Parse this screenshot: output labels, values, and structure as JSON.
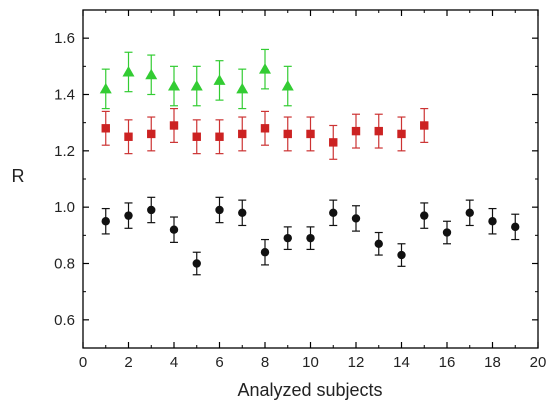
{
  "chart_data": {
    "type": "scatter",
    "title": "",
    "xlabel": "Analyzed subjects",
    "ylabel": "R",
    "xlim": [
      0,
      20
    ],
    "ylim": [
      0.5,
      1.7
    ],
    "xticks": [
      "0",
      "2",
      "4",
      "6",
      "8",
      "10",
      "12",
      "14",
      "16",
      "18",
      "20"
    ],
    "yticks": [
      "0.6",
      "0.8",
      "1.0",
      "1.2",
      "1.4",
      "1.6"
    ],
    "grid": false,
    "legend": "none",
    "series": [
      {
        "color": "#33cc33",
        "error_color": "#33cc33",
        "marker": "triangle",
        "x": [
          1,
          2,
          3,
          4,
          5,
          6,
          7,
          8,
          9
        ],
        "y": [
          1.42,
          1.48,
          1.47,
          1.43,
          1.43,
          1.45,
          1.42,
          1.49,
          1.43
        ],
        "error": [
          0.07,
          0.07,
          0.07,
          0.07,
          0.07,
          0.07,
          0.07,
          0.07,
          0.07
        ]
      },
      {
        "color": "#cc2222",
        "error_color": "#cc3333",
        "marker": "square",
        "x": [
          1,
          2,
          3,
          4,
          5,
          6,
          7,
          8,
          9,
          10,
          11,
          12,
          13,
          14,
          15
        ],
        "y": [
          1.28,
          1.25,
          1.26,
          1.29,
          1.25,
          1.25,
          1.26,
          1.28,
          1.26,
          1.26,
          1.23,
          1.27,
          1.27,
          1.26,
          1.29
        ],
        "error": [
          0.06,
          0.06,
          0.06,
          0.06,
          0.06,
          0.06,
          0.06,
          0.06,
          0.06,
          0.06,
          0.06,
          0.06,
          0.06,
          0.06,
          0.06
        ]
      },
      {
        "color": "#111111",
        "error_color": "#111111",
        "marker": "circle",
        "x": [
          1,
          2,
          3,
          4,
          5,
          6,
          7,
          8,
          9,
          10,
          11,
          12,
          13,
          14,
          15,
          16,
          17,
          18,
          19
        ],
        "y": [
          0.95,
          0.97,
          0.99,
          0.92,
          0.8,
          0.99,
          0.98,
          0.84,
          0.89,
          0.89,
          0.98,
          0.96,
          0.87,
          0.83,
          0.97,
          0.91,
          0.98,
          0.95,
          0.93
        ],
        "error": [
          0.045,
          0.045,
          0.045,
          0.045,
          0.04,
          0.045,
          0.045,
          0.045,
          0.04,
          0.04,
          0.045,
          0.045,
          0.04,
          0.04,
          0.045,
          0.04,
          0.045,
          0.045,
          0.045
        ]
      }
    ]
  }
}
